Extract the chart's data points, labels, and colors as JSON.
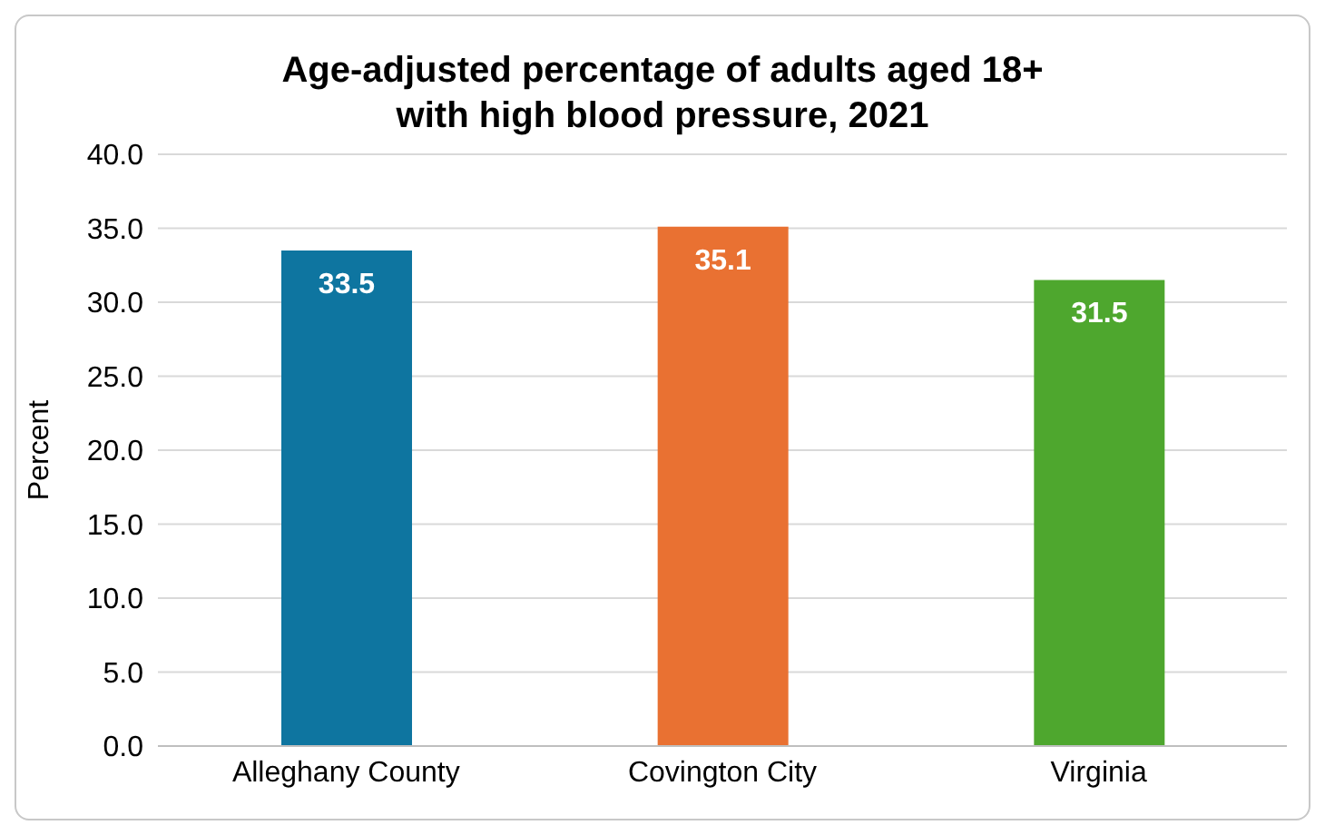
{
  "chart_data": {
    "type": "bar",
    "title": "Age-adjusted percentage of adults aged 18+\nwith high blood pressure, 2021",
    "ylabel": "Percent",
    "categories": [
      "Alleghany County",
      "Covington City",
      "Virginia"
    ],
    "values": [
      33.5,
      35.1,
      31.5
    ],
    "colors": [
      "#0e75a0",
      "#e97132",
      "#4ea72e"
    ],
    "ylim": [
      0,
      40
    ],
    "yticks": [
      {
        "value": 0,
        "label": "0.0"
      },
      {
        "value": 5,
        "label": "5.0"
      },
      {
        "value": 10,
        "label": "10.0"
      },
      {
        "value": 15,
        "label": "15.0"
      },
      {
        "value": 20,
        "label": "20.0"
      },
      {
        "value": 25,
        "label": "25.0"
      },
      {
        "value": 30,
        "label": "30.0"
      },
      {
        "value": 35,
        "label": "35.0"
      },
      {
        "value": 40,
        "label": "40.0"
      }
    ],
    "grid": "y",
    "data_labels": true
  }
}
